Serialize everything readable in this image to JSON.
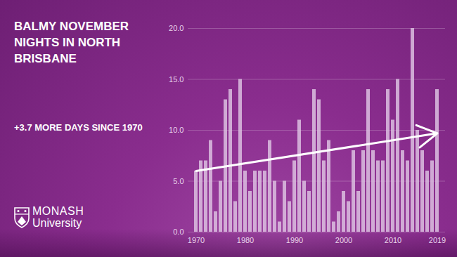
{
  "chart_data": {
    "type": "bar",
    "title": "BALMY NOVEMBER NIGHTS IN NORTH BRISBANE",
    "subtitle": "+3.7 MORE DAYS SINCE 1970",
    "categories": [
      1970,
      1971,
      1972,
      1973,
      1974,
      1975,
      1976,
      1977,
      1978,
      1979,
      1980,
      1981,
      1982,
      1983,
      1984,
      1985,
      1986,
      1987,
      1988,
      1989,
      1990,
      1991,
      1992,
      1993,
      1994,
      1995,
      1996,
      1997,
      1998,
      1999,
      2000,
      2001,
      2002,
      2003,
      2004,
      2005,
      2006,
      2007,
      2008,
      2009,
      2010,
      2011,
      2012,
      2013,
      2014,
      2015,
      2016,
      2017,
      2018,
      2019
    ],
    "values": [
      6,
      7,
      7,
      9,
      2,
      5,
      13,
      14,
      3,
      15,
      6,
      4,
      6,
      6,
      6,
      9,
      5,
      1,
      5,
      3,
      7,
      11,
      5,
      4,
      14,
      13,
      7,
      9,
      1,
      2,
      4,
      3,
      8,
      4,
      8,
      14,
      8,
      7,
      7,
      14,
      11,
      15,
      8,
      7,
      20,
      10,
      8,
      6,
      7,
      14
    ],
    "color": "#dcc0e0",
    "ylim": [
      0,
      20
    ],
    "yticks": [
      {
        "value": 0,
        "label": "0.0"
      },
      {
        "value": 5,
        "label": "5.0"
      },
      {
        "value": 10,
        "label": "10.0"
      },
      {
        "value": 15,
        "label": "15.0"
      },
      {
        "value": 20,
        "label": "20.0"
      }
    ],
    "xticks": [
      1970,
      1980,
      1990,
      2000,
      2010,
      2019
    ],
    "grid": true,
    "trend": {
      "x": [
        1970,
        2019
      ],
      "values": [
        6,
        9.7
      ]
    },
    "logo": [
      "MONASH",
      "University"
    ]
  }
}
